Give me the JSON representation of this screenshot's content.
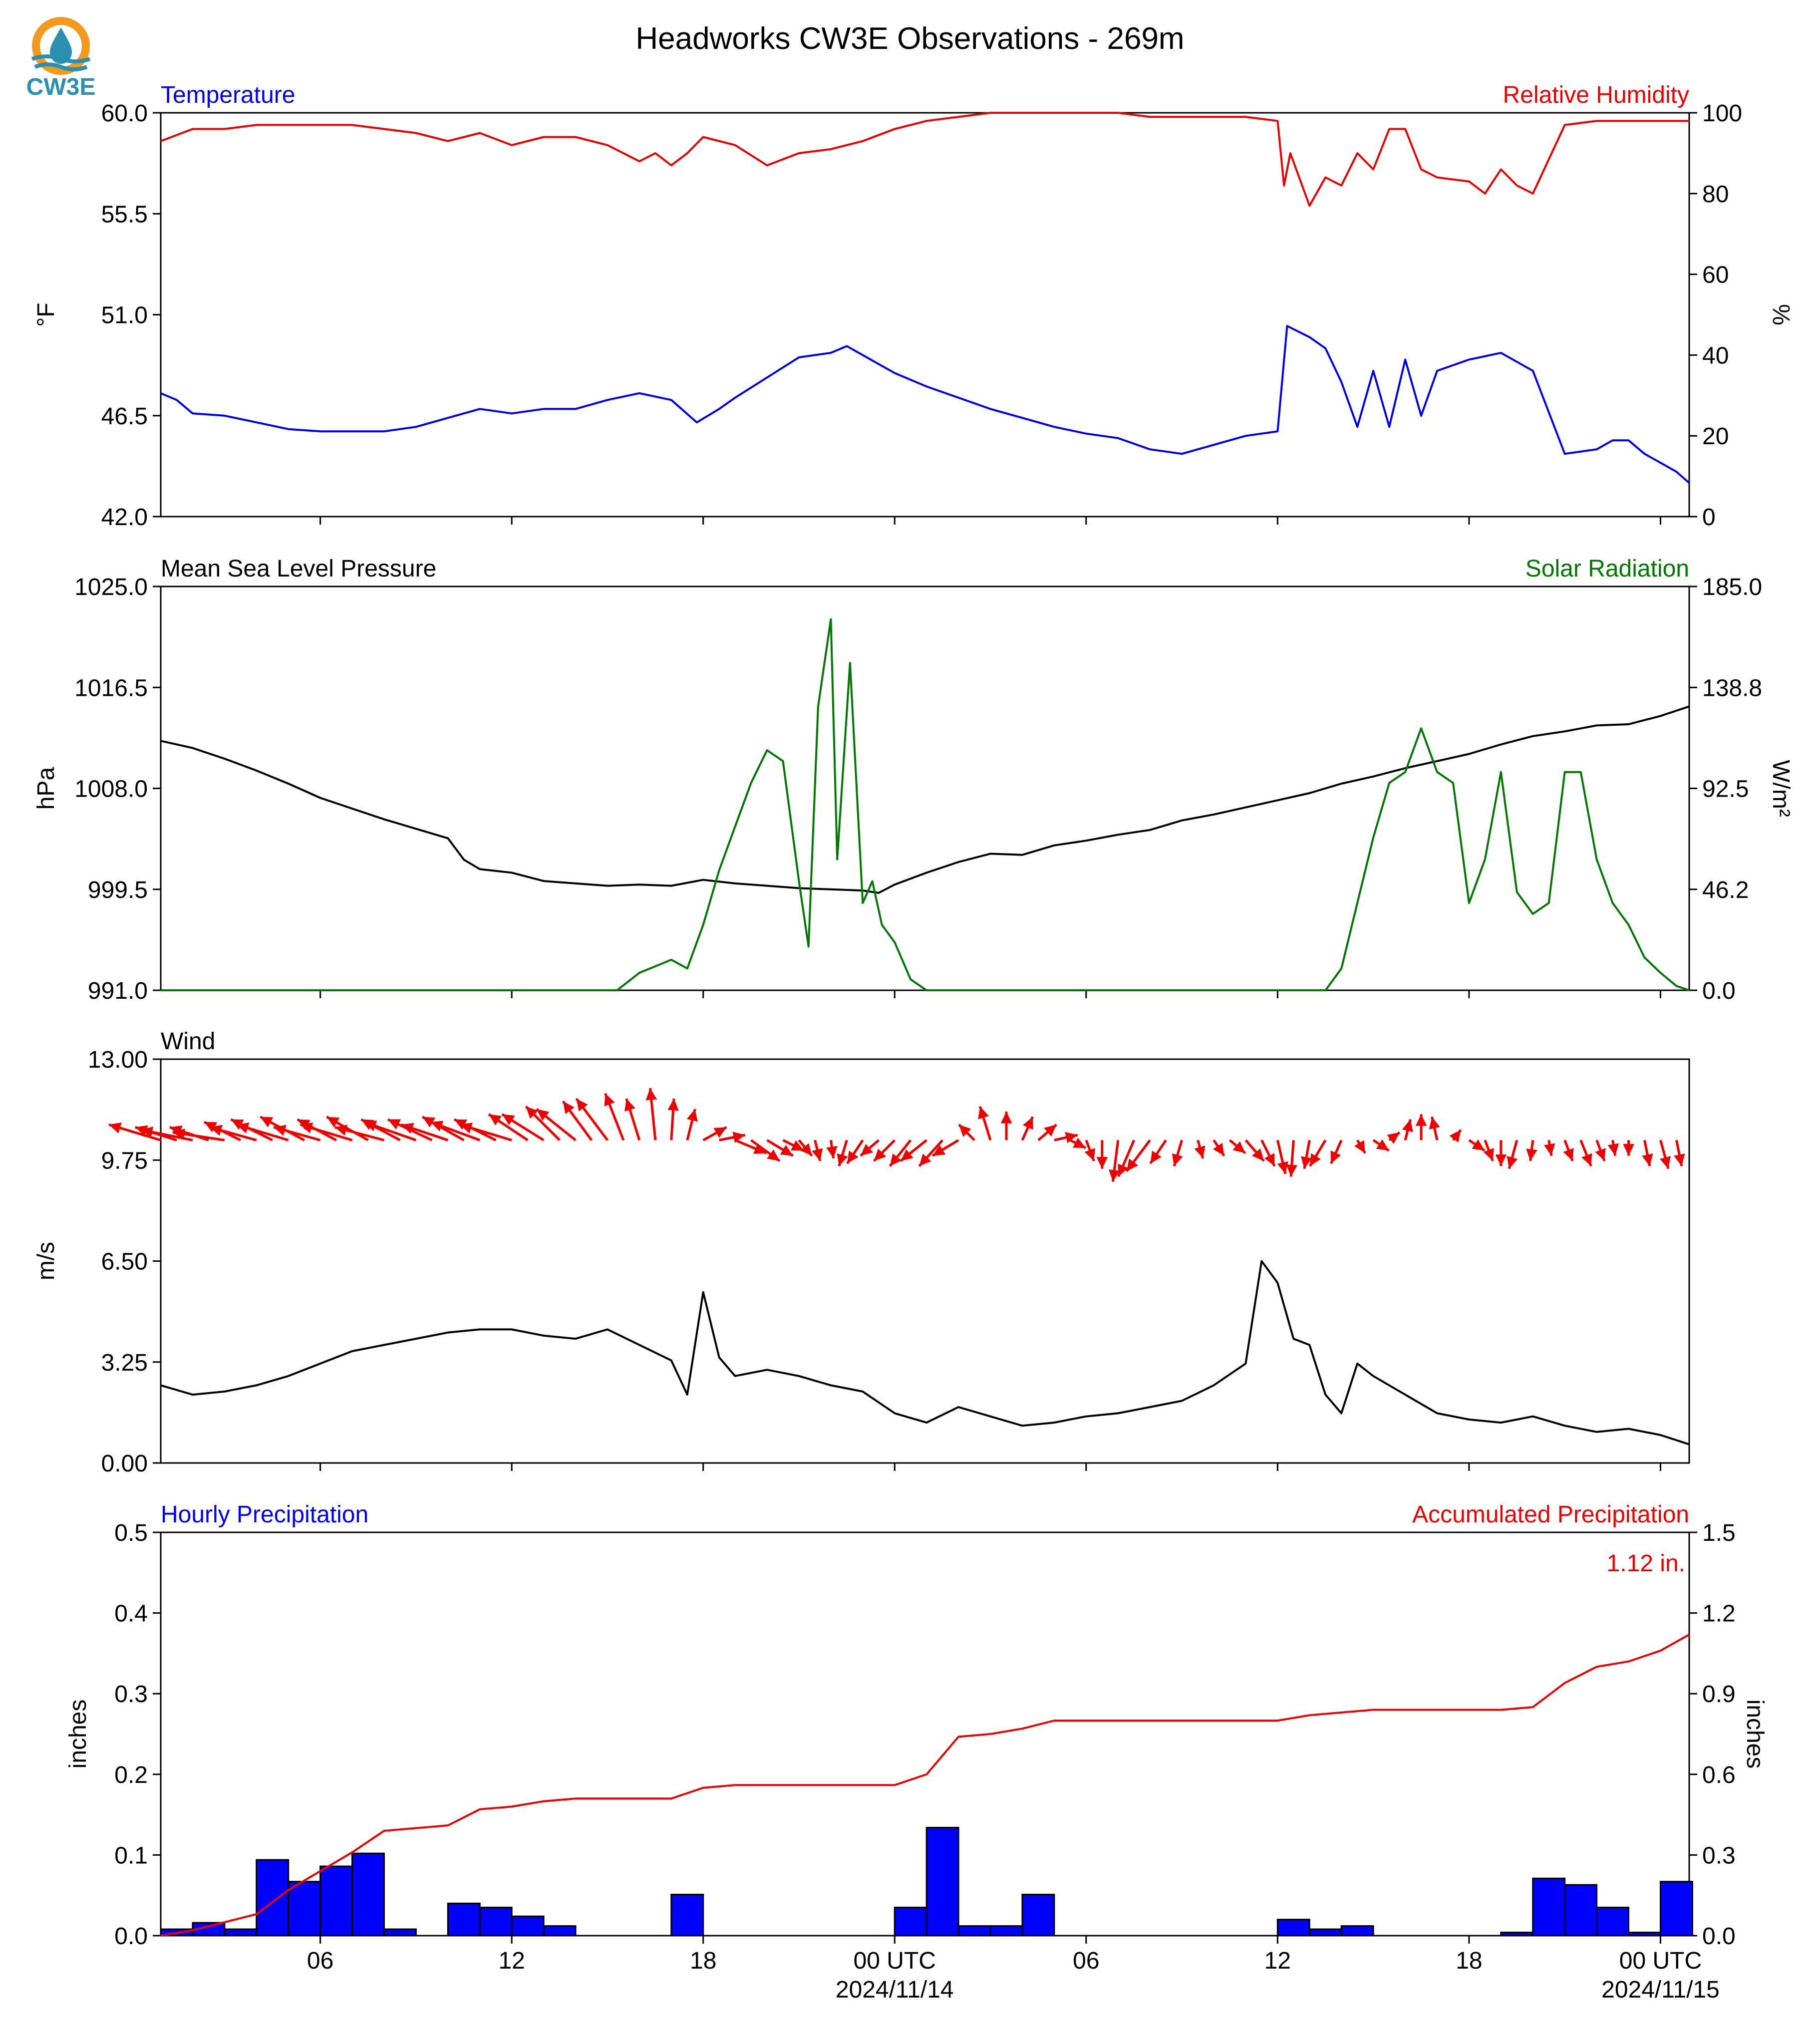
{
  "figure": {
    "title": "Headworks CW3E Observations - 269m",
    "logo_text": "CW3E"
  },
  "colors": {
    "temperature": "#0000ee",
    "humidity": "#ee0000",
    "pressure": "#000000",
    "solar": "#007700",
    "wind_speed": "#000000",
    "wind_arrow": "#ee0000",
    "hourly_bar": "#0000ff",
    "accum_line": "#ee0000",
    "logo_orange": "#f39a1e",
    "logo_teal": "#2a8fb0"
  },
  "x_axis": {
    "tick_hours": [
      6,
      12,
      18,
      24,
      30,
      36,
      42,
      48
    ],
    "tick_labels": [
      "06",
      "12",
      "18",
      "00 UTC",
      "06",
      "12",
      "18",
      "00 UTC"
    ],
    "date_labels": [
      "2024/11/14",
      "2024/11/15"
    ]
  },
  "chart_data": [
    {
      "type": "line",
      "left_label": "Temperature",
      "right_label": "Relative Humidity",
      "ylabel_left": "°F",
      "ylabel_right": "%",
      "ylim_left": [
        42.0,
        60.0
      ],
      "ylim_right": [
        0,
        100
      ],
      "yticks_left": [
        "42.0",
        "46.5",
        "51.0",
        "55.5",
        "60.0"
      ],
      "yticks_right": [
        "0",
        "20",
        "40",
        "60",
        "80",
        "100"
      ],
      "x_range_hours": [
        1,
        48.9
      ],
      "series": [
        {
          "name": "Temperature",
          "axis": "left",
          "x": [
            1,
            1.5,
            2,
            3,
            4,
            5,
            6,
            7,
            8,
            9,
            10,
            11,
            12,
            13,
            14,
            15,
            16,
            17,
            17.8,
            18.5,
            19,
            20,
            21,
            22,
            22.5,
            23,
            24,
            25,
            26,
            27,
            28,
            29,
            30,
            31,
            32,
            33,
            34,
            35,
            36,
            36.3,
            37,
            37.5,
            38,
            38.5,
            39,
            39.5,
            40,
            40.5,
            41,
            42,
            43,
            44,
            45,
            46,
            46.5,
            47,
            47.5,
            48,
            48.5,
            48.9
          ],
          "y": [
            47.5,
            47.2,
            46.6,
            46.5,
            46.2,
            45.9,
            45.8,
            45.8,
            45.8,
            46.0,
            46.4,
            46.8,
            46.6,
            46.8,
            46.8,
            47.2,
            47.5,
            47.2,
            46.2,
            46.8,
            47.3,
            48.2,
            49.1,
            49.3,
            49.6,
            49.2,
            48.4,
            47.8,
            47.3,
            46.8,
            46.4,
            46.0,
            45.7,
            45.5,
            45.0,
            44.8,
            45.2,
            45.6,
            45.8,
            50.5,
            50.0,
            49.5,
            48.0,
            46.0,
            48.5,
            46.0,
            49.0,
            46.5,
            48.5,
            49.0,
            49.3,
            48.5,
            44.8,
            45.0,
            45.4,
            45.4,
            44.8,
            44.4,
            44.0,
            43.5
          ]
        },
        {
          "name": "Relative Humidity",
          "axis": "right",
          "x": [
            1,
            2,
            3,
            4,
            5,
            6,
            7,
            8,
            9,
            10,
            11,
            12,
            13,
            14,
            15,
            16,
            16.5,
            17,
            17.5,
            18,
            19,
            20,
            21,
            22,
            23,
            24,
            25,
            26,
            27,
            28,
            29,
            30,
            31,
            32,
            33,
            34,
            35,
            36,
            36.2,
            36.4,
            37,
            37.5,
            38,
            38.5,
            39,
            39.5,
            40,
            40.5,
            41,
            42,
            42.5,
            43,
            43.5,
            44,
            45,
            46,
            47,
            48,
            48.9
          ],
          "y": [
            93,
            96,
            96,
            97,
            97,
            97,
            97,
            96,
            95,
            93,
            95,
            92,
            94,
            94,
            92,
            88,
            90,
            87,
            90,
            94,
            92,
            87,
            90,
            91,
            93,
            96,
            98,
            99,
            100,
            100,
            100,
            100,
            100,
            99,
            99,
            99,
            99,
            98,
            82,
            90,
            77,
            84,
            82,
            90,
            86,
            96,
            96,
            86,
            84,
            83,
            80,
            86,
            82,
            80,
            97,
            98,
            98,
            98,
            98
          ]
        }
      ]
    },
    {
      "type": "line",
      "left_label": "Mean Sea Level Pressure",
      "right_label": "Solar Radiation",
      "ylabel_left": "hPa",
      "ylabel_right": "W/m²",
      "ylim_left": [
        991.0,
        1025.0
      ],
      "ylim_right": [
        0.0,
        185.0
      ],
      "yticks_left": [
        "991.0",
        "999.5",
        "1008.0",
        "1016.5",
        "1025.0"
      ],
      "yticks_right": [
        "0.0",
        "46.2",
        "92.5",
        "138.8",
        "185.0"
      ],
      "x_range_hours": [
        1,
        48.9
      ],
      "series": [
        {
          "name": "Mean Sea Level Pressure",
          "axis": "left",
          "x": [
            1,
            2,
            3,
            4,
            5,
            6,
            7,
            8,
            9,
            10,
            10.5,
            11,
            12,
            13,
            14,
            15,
            16,
            17,
            18,
            19,
            20,
            21,
            22,
            23,
            23.5,
            24,
            25,
            26,
            27,
            28,
            29,
            30,
            31,
            32,
            33,
            34,
            35,
            36,
            37,
            38,
            39,
            40,
            41,
            42,
            43,
            44,
            45,
            46,
            47,
            48,
            48.9
          ],
          "y": [
            1012.0,
            1011.4,
            1010.5,
            1009.5,
            1008.4,
            1007.2,
            1006.3,
            1005.4,
            1004.6,
            1003.8,
            1002.0,
            1001.2,
            1000.9,
            1000.2,
            1000.0,
            999.8,
            999.9,
            999.8,
            1000.3,
            1000.0,
            999.8,
            999.6,
            999.5,
            999.4,
            999.2,
            999.9,
            1000.9,
            1001.8,
            1002.5,
            1002.4,
            1003.2,
            1003.6,
            1004.1,
            1004.5,
            1005.3,
            1005.8,
            1006.4,
            1007.0,
            1007.6,
            1008.4,
            1009.0,
            1009.7,
            1010.3,
            1010.9,
            1011.7,
            1012.4,
            1012.8,
            1013.3,
            1013.4,
            1014.1,
            1014.9
          ]
        },
        {
          "name": "Solar Radiation",
          "axis": "right",
          "x": [
            1,
            15.3,
            16,
            17,
            17.5,
            18,
            18.5,
            19,
            19.5,
            20,
            20.5,
            21,
            21.3,
            21.6,
            22,
            22.2,
            22.6,
            23,
            23.3,
            23.6,
            24,
            24.5,
            25,
            25.5,
            37.5,
            38,
            39,
            39.5,
            40,
            40.5,
            41,
            41.5,
            42,
            42.5,
            43,
            43.5,
            44,
            44.5,
            45,
            45.5,
            46,
            46.5,
            47,
            47.5,
            48,
            48.5,
            48.9
          ],
          "y": [
            0,
            0,
            8,
            14,
            10,
            30,
            55,
            75,
            95,
            110,
            105,
            50,
            20,
            130,
            170,
            60,
            150,
            40,
            50,
            30,
            22,
            5,
            0,
            0,
            0,
            10,
            70,
            95,
            100,
            120,
            100,
            95,
            40,
            60,
            100,
            45,
            35,
            40,
            100,
            100,
            60,
            40,
            30,
            15,
            8,
            2,
            0
          ]
        }
      ]
    },
    {
      "type": "line",
      "left_label": "Wind",
      "ylabel_left": "m/s",
      "ylim_left": [
        0.0,
        13.0
      ],
      "yticks_left": [
        "0.00",
        "3.25",
        "6.50",
        "9.75",
        "13.00"
      ],
      "x_range_hours": [
        1,
        48.9
      ],
      "series": [
        {
          "name": "Wind",
          "axis": "left",
          "x": [
            1,
            2,
            3,
            4,
            5,
            6,
            7,
            8,
            9,
            10,
            11,
            12,
            13,
            14,
            15,
            16,
            17,
            17.5,
            18,
            18.5,
            19,
            20,
            21,
            22,
            23,
            24,
            25,
            26,
            27,
            28,
            29,
            30,
            31,
            32,
            33,
            34,
            35,
            35.5,
            36,
            36.5,
            37,
            37.5,
            38,
            38.5,
            39,
            40,
            41,
            42,
            43,
            44,
            45,
            46,
            47,
            48,
            48.9
          ],
          "y": [
            2.5,
            2.2,
            2.3,
            2.5,
            2.8,
            3.2,
            3.6,
            3.8,
            4.0,
            4.2,
            4.3,
            4.3,
            4.1,
            4.0,
            4.3,
            3.8,
            3.3,
            2.2,
            5.5,
            3.4,
            2.8,
            3.0,
            2.8,
            2.5,
            2.3,
            1.6,
            1.3,
            1.8,
            1.5,
            1.2,
            1.3,
            1.5,
            1.6,
            1.8,
            2.0,
            2.5,
            3.2,
            6.5,
            5.8,
            4.0,
            3.8,
            2.2,
            1.6,
            3.2,
            2.8,
            2.2,
            1.6,
            1.4,
            1.3,
            1.5,
            1.2,
            1.0,
            1.1,
            0.9,
            0.6
          ]
        }
      ],
      "wind_vectors": {
        "ref_speed": 9.75,
        "x": [
          1,
          1.5,
          2,
          2.5,
          3,
          3.5,
          4,
          4.5,
          5,
          5.5,
          6,
          6.5,
          7,
          7.5,
          8,
          8.5,
          9,
          9.5,
          10,
          10.5,
          11,
          11.5,
          12,
          12.5,
          13,
          13.5,
          14,
          14.5,
          15,
          15.5,
          16,
          16.5,
          17,
          17.5,
          18,
          18.5,
          19,
          19.5,
          20,
          20.5,
          21,
          21.5,
          22,
          22.5,
          23,
          23.5,
          24,
          24.5,
          25,
          25.5,
          26,
          26.5,
          27,
          27.5,
          28,
          28.5,
          29,
          29.5,
          30,
          30.5,
          31,
          31.5,
          32,
          32.5,
          33,
          33.5,
          34,
          34.5,
          35,
          35.5,
          36,
          36.5,
          37,
          37.5,
          38,
          38.5,
          39,
          39.5,
          40,
          40.5,
          41,
          41.5,
          42,
          42.5,
          43,
          43.5,
          44,
          44.5,
          45,
          45.5,
          46,
          46.5,
          47,
          47.5,
          48,
          48.5
        ],
        "u": [
          -2.0,
          -1.6,
          -2.0,
          -1.5,
          -2.0,
          -1.4,
          -1.8,
          -1.6,
          -2.0,
          -1.7,
          -1.8,
          -1.5,
          -2.0,
          -1.6,
          -1.9,
          -1.5,
          -2.0,
          -1.7,
          -1.8,
          -1.6,
          -1.9,
          -1.6,
          -2.0,
          -1.5,
          -1.6,
          -1.3,
          -1.5,
          -1.1,
          -1.2,
          -0.7,
          -0.5,
          -0.2,
          0.1,
          0.3,
          0.9,
          1.0,
          1.2,
          1.1,
          1.0,
          0.8,
          0.5,
          0.2,
          0.1,
          -0.3,
          -0.6,
          -0.7,
          -0.8,
          -0.8,
          -1.0,
          -0.9,
          -1.0,
          -0.6,
          -0.4,
          0.0,
          0.4,
          0.7,
          0.9,
          0.6,
          0.3,
          0.0,
          -0.2,
          -0.6,
          -0.9,
          -0.6,
          -0.3,
          0.2,
          0.4,
          0.6,
          0.7,
          0.5,
          0.3,
          -0.1,
          -0.2,
          -0.6,
          -0.4,
          0.3,
          0.6,
          0.4,
          0.2,
          0.0,
          -0.2,
          0.3,
          0.6,
          0.3,
          0.0,
          -0.3,
          -0.1,
          0.1,
          0.3,
          0.4,
          0.3,
          0.1,
          0.0,
          0.2,
          0.3,
          0.2,
          0.1,
          0.1
        ],
        "v": [
          0.6,
          0.5,
          0.4,
          0.5,
          0.3,
          0.7,
          0.5,
          0.8,
          0.6,
          0.9,
          0.5,
          0.8,
          0.6,
          0.9,
          0.5,
          0.8,
          0.7,
          0.8,
          0.6,
          0.9,
          0.7,
          0.8,
          0.6,
          1.0,
          1.0,
          1.3,
          1.2,
          1.5,
          1.6,
          1.8,
          1.6,
          2.0,
          1.6,
          1.2,
          0.5,
          0.2,
          -0.5,
          -0.8,
          -0.6,
          -0.4,
          -0.6,
          -0.8,
          -0.7,
          -1.0,
          -0.9,
          -0.6,
          -0.8,
          -1.0,
          -0.8,
          -1.0,
          -0.6,
          0.6,
          1.3,
          1.1,
          0.9,
          0.6,
          0.2,
          -0.3,
          -0.8,
          -1.1,
          -1.6,
          -1.4,
          -1.2,
          -0.9,
          -1.0,
          -0.7,
          -0.6,
          -0.5,
          -0.8,
          -1.0,
          -1.3,
          -1.4,
          -1.1,
          -1.0,
          -0.9,
          -0.5,
          -0.4,
          0.3,
          0.8,
          1.0,
          0.9,
          0.4,
          -0.4,
          -0.8,
          -1.0,
          -1.1,
          -0.8,
          -0.6,
          -0.8,
          -1.0,
          -0.8,
          -0.6,
          -0.6,
          -1.0,
          -1.1,
          -1.0,
          -1.2,
          -1.1
        ]
      }
    },
    {
      "type": "bar",
      "left_label": "Hourly Precipitation",
      "right_label": "Accumulated Precipitation",
      "total_label": "1.12 in.",
      "ylabel_left": "inches",
      "ylabel_right": "inches",
      "ylim_left": [
        0.0,
        0.5
      ],
      "ylim_right": [
        0.0,
        1.5
      ],
      "yticks_left": [
        "0.0",
        "0.1",
        "0.2",
        "0.3",
        "0.4",
        "0.5"
      ],
      "yticks_right": [
        "0.0",
        "0.3",
        "0.6",
        "0.9",
        "1.2",
        "1.5"
      ],
      "x_range_hours": [
        1,
        48.9
      ],
      "bar_start_hours": [
        1,
        2,
        3,
        4,
        5,
        6,
        7,
        8,
        9,
        10,
        11,
        12,
        13,
        14,
        15,
        16,
        17,
        18,
        19,
        20,
        21,
        22,
        23,
        24,
        25,
        26,
        27,
        28,
        29,
        30,
        31,
        32,
        33,
        34,
        35,
        36,
        37,
        38,
        39,
        40,
        41,
        42,
        43,
        44,
        45,
        46,
        47,
        48
      ],
      "hourly_values": [
        0.008,
        0.016,
        0.008,
        0.094,
        0.067,
        0.086,
        0.102,
        0.008,
        0.0,
        0.04,
        0.035,
        0.024,
        0.012,
        0.0,
        0.0,
        0.0,
        0.051,
        0.0,
        0.0,
        0.0,
        0.0,
        0.0,
        0.0,
        0.035,
        0.134,
        0.012,
        0.012,
        0.051,
        0.0,
        0.0,
        0.0,
        0.0,
        0.0,
        0.0,
        0.0,
        0.02,
        0.008,
        0.012,
        0.0,
        0.0,
        0.0,
        0.0,
        0.004,
        0.071,
        0.063,
        0.035,
        0.004,
        0.067
      ],
      "accum_x": [
        1,
        2,
        3,
        4,
        5,
        6,
        7,
        8,
        9,
        10,
        11,
        12,
        13,
        14,
        15,
        16,
        17,
        18,
        19,
        20,
        21,
        22,
        23,
        24,
        25,
        26,
        27,
        28,
        29,
        30,
        31,
        32,
        33,
        34,
        35,
        36,
        37,
        38,
        39,
        40,
        41,
        42,
        43,
        44,
        45,
        46,
        47,
        48,
        48.9
      ],
      "accum_y": [
        0.0,
        0.02,
        0.05,
        0.08,
        0.17,
        0.24,
        0.31,
        0.39,
        0.4,
        0.41,
        0.47,
        0.48,
        0.5,
        0.51,
        0.51,
        0.51,
        0.51,
        0.55,
        0.56,
        0.56,
        0.56,
        0.56,
        0.56,
        0.56,
        0.6,
        0.74,
        0.75,
        0.77,
        0.8,
        0.8,
        0.8,
        0.8,
        0.8,
        0.8,
        0.8,
        0.8,
        0.82,
        0.83,
        0.84,
        0.84,
        0.84,
        0.84,
        0.84,
        0.85,
        0.94,
        1.0,
        1.02,
        1.06,
        1.12
      ]
    }
  ]
}
